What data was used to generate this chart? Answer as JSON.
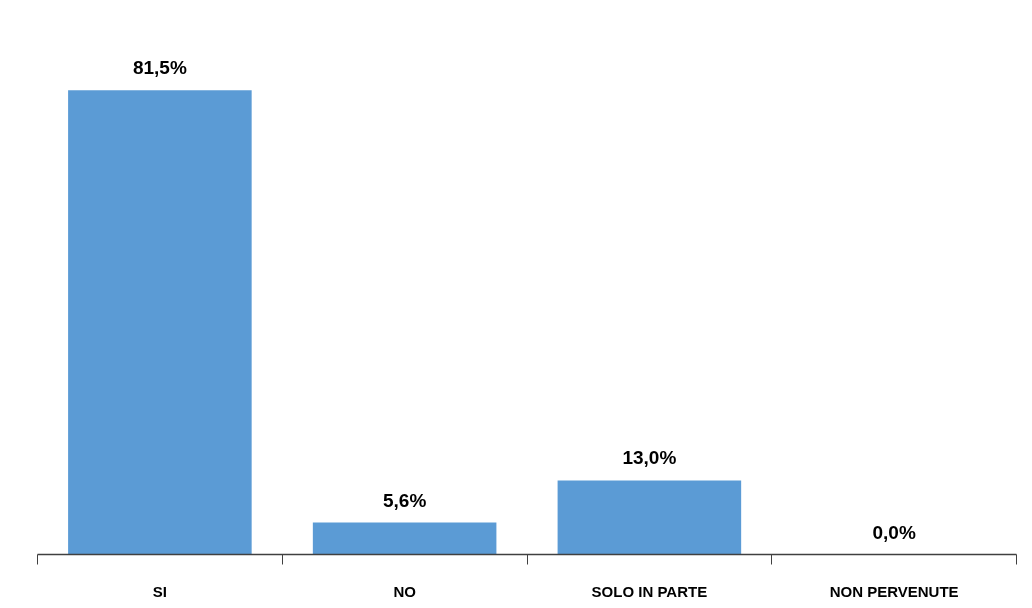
{
  "chart_data": {
    "type": "bar",
    "categories": [
      "SI",
      "NO",
      "SOLO IN PARTE",
      "NON PERVENUTE"
    ],
    "values": [
      81.5,
      5.6,
      13.0,
      0.0
    ],
    "value_labels": [
      "81,5%",
      "5,6%",
      "13,0%",
      "0,0%"
    ],
    "color": "#5b9bd5",
    "grid": false
  }
}
